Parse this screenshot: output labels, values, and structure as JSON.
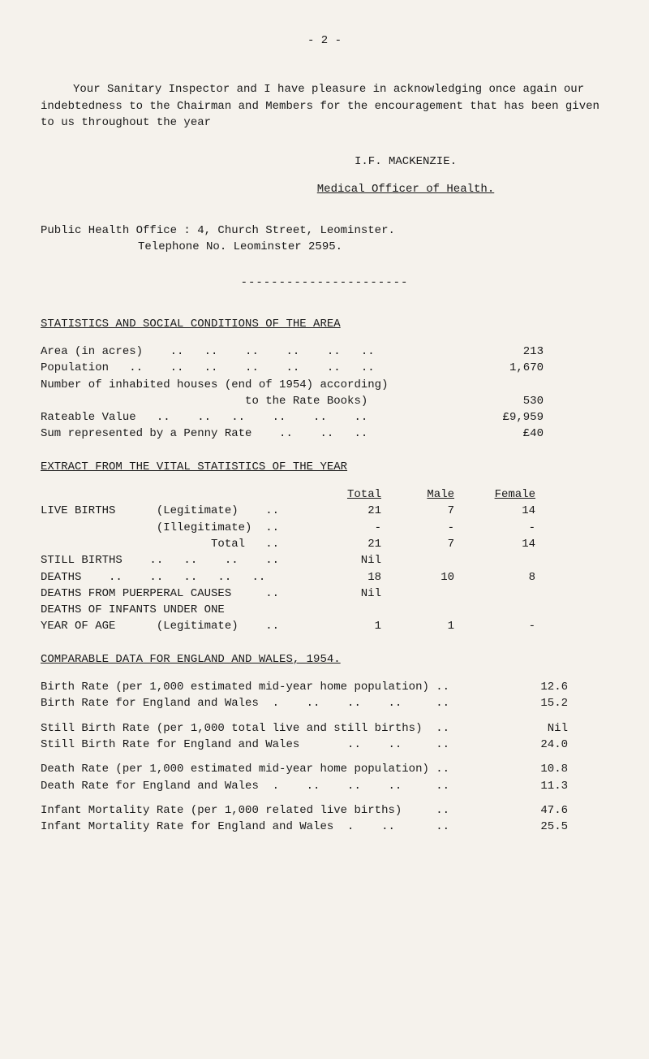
{
  "page_number": "- 2 -",
  "intro_paragraph": "Your Sanitary Inspector and I have pleasure in acknowledging once again our indebtedness to the Chairman and Members for the encouragement that has been given to us throughout the year",
  "signature": "I.F. MACKENZIE.",
  "signature_title": "Medical Officer of Health.",
  "office_line1": "Public Health Office : 4, Church Street, Leominster.",
  "office_line2": "Telephone No. Leominster 2595.",
  "divider": "----------------------",
  "heading_stats": "STATISTICS AND SOCIAL CONDITIONS OF THE AREA",
  "stats": [
    {
      "label": "Area (in acres)    ..   ..    ..    ..    ..   ..",
      "value": "213"
    },
    {
      "label": "Population   ..    ..   ..    ..    ..    ..   ..",
      "value": "1,670"
    },
    {
      "label": "Number of inhabited houses (end of 1954) according)",
      "value": ""
    },
    {
      "label": "                              to the Rate Books)",
      "value": "530"
    },
    {
      "label": "Rateable Value   ..    ..   ..    ..    ..    ..",
      "value": "£9,959"
    },
    {
      "label": "Sum represented by a Penny Rate    ..    ..   ..",
      "value": "£40"
    }
  ],
  "heading_vital": "EXTRACT FROM THE VITAL STATISTICS OF THE YEAR",
  "vital_headers": {
    "c1": "",
    "c2": "Total",
    "c3": "Male",
    "c4": "Female"
  },
  "vital_rows": [
    {
      "c1": "LIVE BIRTHS      (Legitimate)    ..",
      "c2": "21",
      "c3": "7",
      "c4": "14"
    },
    {
      "c1": "                 (Illegitimate)  ..",
      "c2": "-",
      "c3": "-",
      "c4": "-"
    },
    {
      "c1": "                         Total   ..",
      "c2": "21",
      "c3": "7",
      "c4": "14"
    },
    {
      "c1": "STILL BIRTHS    ..   ..    ..    ..",
      "c2": "Nil",
      "c3": "",
      "c4": ""
    },
    {
      "c1": "DEATHS    ..    ..   ..   ..   ..  ",
      "c2": "18",
      "c3": "10",
      "c4": "8"
    },
    {
      "c1": "DEATHS FROM PUERPERAL CAUSES     ..",
      "c2": "Nil",
      "c3": "",
      "c4": ""
    },
    {
      "c1": "DEATHS OF INFANTS UNDER ONE",
      "c2": "",
      "c3": "",
      "c4": ""
    },
    {
      "c1": "YEAR OF AGE      (Legitimate)    ..",
      "c2": "1",
      "c3": "1",
      "c4": "-"
    }
  ],
  "heading_comparable": "COMPARABLE DATA FOR ENGLAND AND WALES, 1954.",
  "comparable": [
    {
      "label": "Birth Rate (per 1,000 estimated mid-year home population) ..",
      "value": "12.6"
    },
    {
      "label": "Birth Rate for England and Wales  .    ..    ..    ..     ..",
      "value": "15.2"
    },
    {
      "gap": true
    },
    {
      "label": "Still Birth Rate (per 1,000 total live and still births)  ..",
      "value": "Nil"
    },
    {
      "label": "Still Birth Rate for England and Wales       ..    ..     ..",
      "value": "24.0"
    },
    {
      "gap": true
    },
    {
      "label": "Death Rate (per 1,000 estimated mid-year home population) ..",
      "value": "10.8"
    },
    {
      "label": "Death Rate for England and Wales  .    ..    ..    ..     ..",
      "value": "11.3"
    },
    {
      "gap": true
    },
    {
      "label": "Infant Mortality Rate (per 1,000 related live births)     ..",
      "value": "47.6"
    },
    {
      "label": "Infant Mortality Rate for England and Wales  .    ..      ..",
      "value": "25.5"
    }
  ]
}
